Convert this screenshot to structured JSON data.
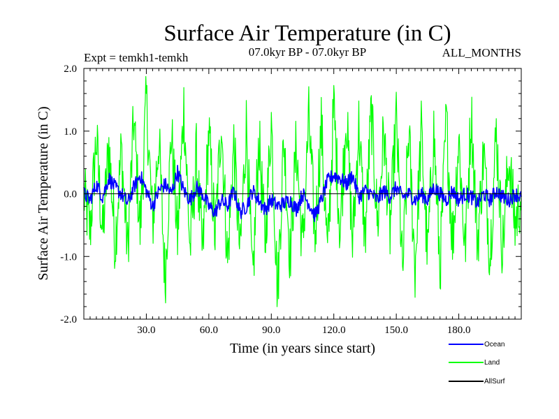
{
  "chart_data": {
    "type": "line",
    "title": "Surface Air Temperature (in C)",
    "subtitle": "07.0kyr BP - 07.0kyr BP",
    "experiment": "Expt = temkh1-temkh",
    "months": "ALL_MONTHS",
    "xlabel": "Time (in years since start)",
    "ylabel": "Surface Air Temperature (in C)",
    "xlim": [
      0,
      210
    ],
    "ylim": [
      -2.0,
      2.0
    ],
    "xticks": [
      30,
      60,
      90,
      120,
      150,
      180
    ],
    "xtick_labels": [
      "30.0",
      "60.0",
      "90.0",
      "120.0",
      "150.0",
      "180.0"
    ],
    "yticks": [
      -2.0,
      -1.0,
      0.0,
      1.0,
      2.0
    ],
    "ytick_labels": [
      "-2.0",
      "-1.0",
      "0.0",
      "1.0",
      "2.0"
    ],
    "zero_line": true,
    "legend_position": "bottom-right",
    "series": [
      {
        "name": "Land",
        "color": "#00ff00",
        "x": [
          0,
          3,
          6,
          9,
          12,
          15,
          18,
          21,
          24,
          27,
          30,
          33,
          36,
          39,
          42,
          45,
          48,
          51,
          54,
          57,
          60,
          63,
          66,
          69,
          72,
          75,
          78,
          81,
          84,
          87,
          90,
          93,
          96,
          99,
          102,
          105,
          108,
          111,
          114,
          117,
          120,
          123,
          126,
          129,
          132,
          135,
          138,
          141,
          144,
          147,
          150,
          153,
          156,
          159,
          162,
          165,
          168,
          171,
          174,
          177,
          180,
          183,
          186,
          189,
          192,
          195,
          198,
          201,
          204,
          207,
          210
        ],
        "values": [
          0.0,
          -0.6,
          0.9,
          -0.7,
          0.8,
          -0.8,
          0.7,
          -0.9,
          1.2,
          -0.6,
          1.5,
          -0.5,
          0.9,
          -1.4,
          1.0,
          -0.7,
          1.4,
          -0.9,
          0.6,
          -1.0,
          1.0,
          -0.7,
          1.2,
          -1.1,
          0.8,
          -1.0,
          1.1,
          -1.5,
          0.9,
          -0.8,
          1.2,
          -1.6,
          0.9,
          -1.0,
          0.8,
          -0.9,
          1.2,
          -0.7,
          1.1,
          -1.0,
          1.4,
          -0.6,
          1.3,
          -0.8,
          1.1,
          -0.7,
          1.3,
          -0.5,
          1.0,
          -0.6,
          1.2,
          -1.3,
          1.0,
          -1.2,
          1.0,
          -1.0,
          1.0,
          -1.2,
          1.2,
          -0.8,
          0.9,
          -0.9,
          1.3,
          -0.8,
          0.7,
          -1.0,
          1.0,
          -0.9,
          0.6,
          -0.5,
          0.0
        ],
        "noise_amplitude": 0.55
      },
      {
        "name": "Ocean",
        "color": "#0000ff",
        "x": [
          0,
          3,
          6,
          9,
          12,
          15,
          18,
          21,
          24,
          27,
          30,
          33,
          36,
          39,
          42,
          45,
          48,
          51,
          54,
          57,
          60,
          63,
          66,
          69,
          72,
          75,
          78,
          81,
          84,
          87,
          90,
          93,
          96,
          99,
          102,
          105,
          108,
          111,
          114,
          117,
          120,
          123,
          126,
          129,
          132,
          135,
          138,
          141,
          144,
          147,
          150,
          153,
          156,
          159,
          162,
          165,
          168,
          171,
          174,
          177,
          180,
          183,
          186,
          189,
          192,
          195,
          198,
          201,
          204,
          207,
          210
        ],
        "values": [
          0.0,
          -0.1,
          0.15,
          -0.05,
          0.25,
          0.1,
          0.0,
          -0.15,
          0.1,
          0.3,
          0.05,
          -0.2,
          0.05,
          0.15,
          0.0,
          0.35,
          0.05,
          -0.1,
          0.1,
          0.0,
          -0.2,
          -0.3,
          -0.1,
          -0.2,
          0.05,
          -0.3,
          -0.2,
          0.05,
          -0.1,
          -0.25,
          -0.1,
          -0.2,
          -0.15,
          -0.1,
          -0.25,
          0.0,
          -0.15,
          -0.35,
          -0.1,
          0.2,
          0.3,
          0.25,
          0.15,
          0.3,
          -0.05,
          0.05,
          0.0,
          -0.1,
          0.05,
          -0.05,
          0.1,
          -0.05,
          0.0,
          -0.1,
          0.0,
          -0.1,
          0.1,
          0.0,
          -0.1,
          0.05,
          -0.1,
          0.0,
          -0.05,
          -0.15,
          0.0,
          -0.1,
          0.05,
          -0.05,
          -0.1,
          0.0,
          -0.05
        ],
        "noise_amplitude": 0.12
      },
      {
        "name": "AllSurf",
        "color": "#000000",
        "x": [],
        "values": []
      }
    ]
  },
  "legend": {
    "items": [
      {
        "name": "Ocean",
        "color": "#0000ff"
      },
      {
        "name": "Land",
        "color": "#00ff00"
      },
      {
        "name": "AllSurf",
        "color": "#000000"
      }
    ]
  }
}
